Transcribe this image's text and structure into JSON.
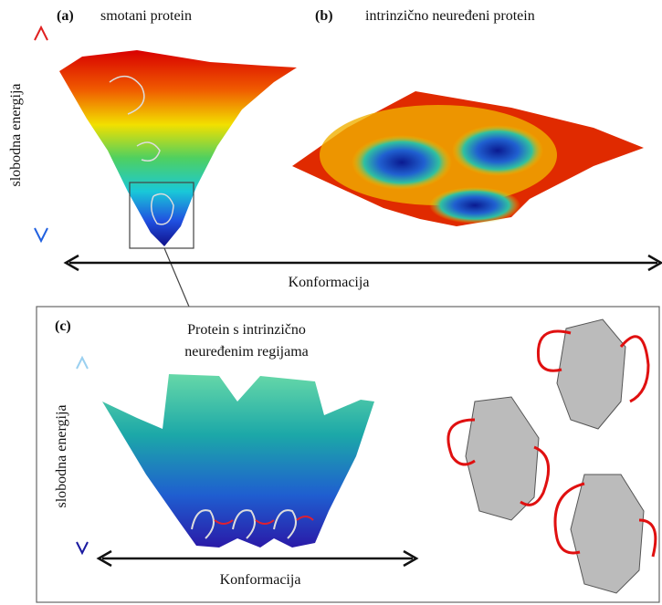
{
  "panels": [
    {
      "label": "(a)",
      "title": "smotani protein"
    },
    {
      "label": "(b)",
      "title": "intrinzično neuređeni protein"
    },
    {
      "label": "(c)",
      "title_lines": [
        "Protein s intrinzično",
        "neuređenim regijama"
      ]
    }
  ],
  "axes": {
    "top": {
      "y_label": "slobodna energija",
      "x_label": "Konformacija"
    },
    "bottom": {
      "y_label": "slobodna energija",
      "x_label": "Konformacija"
    }
  }
}
